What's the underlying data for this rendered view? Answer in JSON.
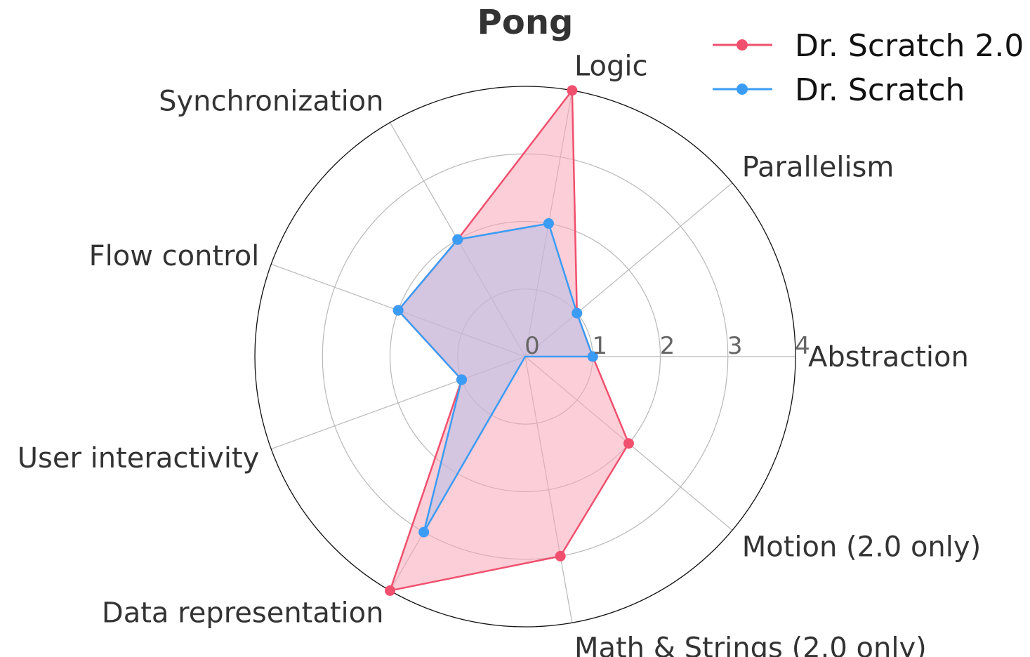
{
  "chart_data": {
    "type": "radar",
    "title": "Pong",
    "categories": [
      "Abstraction",
      "Parallelism",
      "Logic",
      "Synchronization",
      "Flow control",
      "User interactivity",
      "Data representation",
      "Math & Strings (2.0 only)",
      "Motion (2.0 only)"
    ],
    "rlim": [
      0,
      4
    ],
    "rticks": [
      "0",
      "1",
      "2",
      "3",
      "4"
    ],
    "grid": true,
    "legend_position": "top-right",
    "series": [
      {
        "name": "Dr. Scratch 2.0",
        "color": "#f0506e",
        "fill": "#f8a5b8",
        "values": [
          1,
          1,
          4,
          2,
          2,
          1,
          4,
          3,
          2
        ]
      },
      {
        "name": "Dr. Scratch",
        "color": "#3b9cf5",
        "fill": "#b5bde8",
        "values": [
          1,
          1,
          2,
          2,
          2,
          1,
          3,
          0,
          0
        ]
      }
    ]
  }
}
